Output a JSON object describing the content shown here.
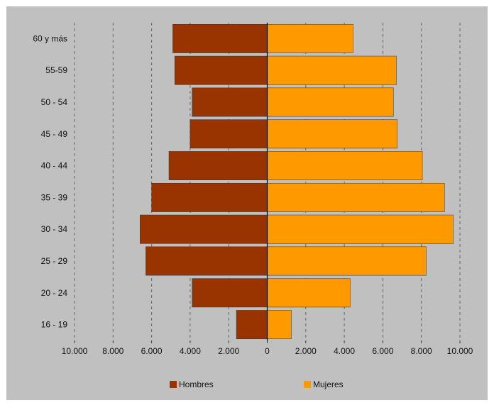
{
  "chart_data": {
    "type": "bar",
    "orientation": "horizontal",
    "stacked_diverging": true,
    "categories": [
      "16 - 19",
      "20 - 24",
      "25 - 29",
      "30 - 34",
      "35 - 39",
      "40 - 44",
      "45 - 49",
      "50 - 54",
      "55-59",
      "60 y más"
    ],
    "series": [
      {
        "name": "Hombres",
        "color": "#993300",
        "values": [
          1600,
          3900,
          6300,
          6600,
          6000,
          5100,
          4000,
          3900,
          4800,
          4900
        ]
      },
      {
        "name": "Mujeres",
        "color": "#FF9900",
        "values": [
          1250,
          4300,
          8250,
          9650,
          9200,
          8050,
          6750,
          6550,
          6700,
          4450
        ]
      }
    ],
    "xlim": [
      -10000,
      10000
    ],
    "x_ticks": [
      -10000,
      -8000,
      -6000,
      -4000,
      -2000,
      0,
      2000,
      4000,
      6000,
      8000,
      10000
    ],
    "x_tick_labels": [
      "10.000",
      "8.000",
      "6.000",
      "4.000",
      "2.000",
      "0",
      "2.000",
      "4.000",
      "6.000",
      "8.000",
      "10.000"
    ],
    "grid": true,
    "legend_position": "bottom",
    "background_color": "#C0C0C0",
    "title": "",
    "xlabel": "",
    "ylabel": ""
  }
}
